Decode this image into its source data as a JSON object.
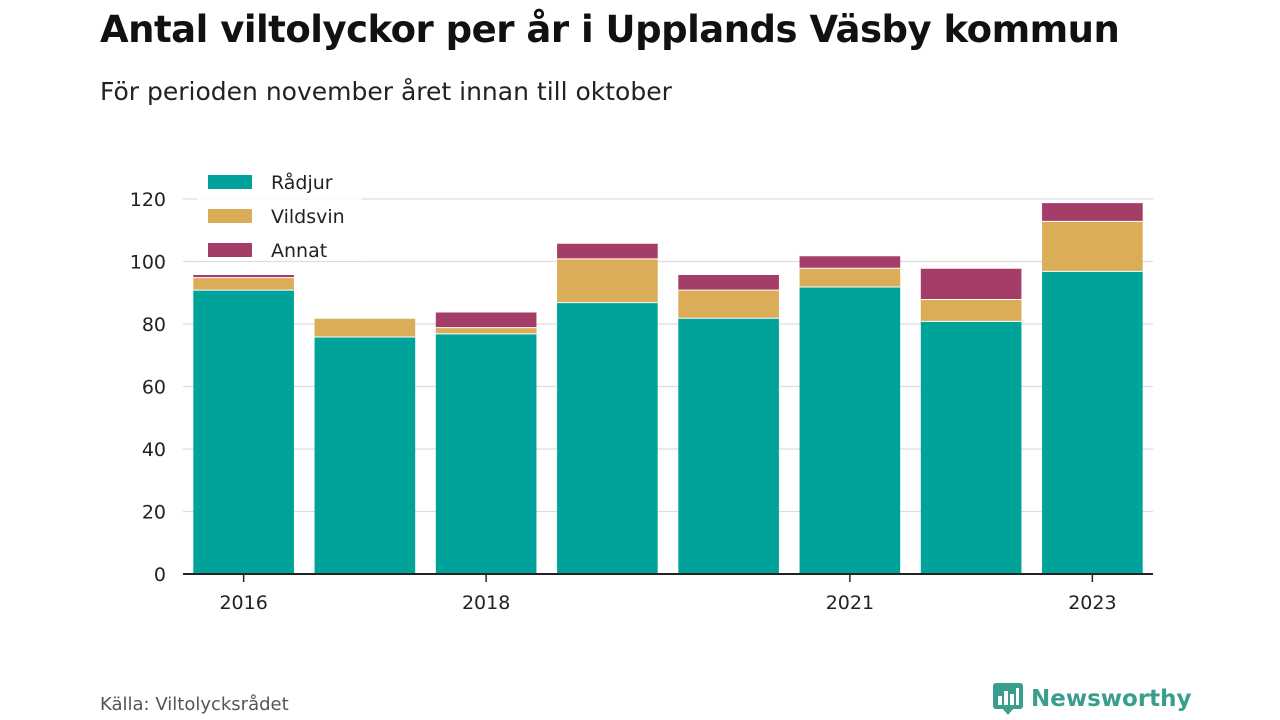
{
  "header": {
    "title": "Antal viltolyckor per år i Upplands Väsby kommun",
    "subtitle": "För perioden november året innan till oktober"
  },
  "footer": {
    "source": "Källa: Viltolycksrådet",
    "brand": "Newsworthy",
    "brand_icon": "bar-chart-speech-bubble-icon"
  },
  "colors": {
    "radjur": "#00a39a",
    "vildsvin": "#dcad58",
    "annat": "#a43d68",
    "grid": "#dddddd",
    "axis": "#222222",
    "brand": "#3a9e8f"
  },
  "chart_data": {
    "type": "bar",
    "stacked": true,
    "categories": [
      "2016",
      "2017",
      "2018",
      "2019",
      "2020",
      "2021",
      "2022",
      "2023"
    ],
    "x_tick_labels": [
      "2016",
      "",
      "2018",
      "",
      "",
      "2021",
      "",
      "2023"
    ],
    "series": [
      {
        "name": "Rådjur",
        "color": "#00a39a",
        "values": [
          91,
          76,
          77,
          87,
          82,
          92,
          81,
          97
        ]
      },
      {
        "name": "Vildsvin",
        "color": "#dcad58",
        "values": [
          4,
          6,
          2,
          14,
          9,
          6,
          7,
          16
        ]
      },
      {
        "name": "Annat",
        "color": "#a43d68",
        "values": [
          1,
          0,
          5,
          5,
          5,
          4,
          10,
          6
        ]
      }
    ],
    "y_ticks": [
      0,
      20,
      40,
      60,
      80,
      100,
      120
    ],
    "ylim": [
      0,
      120
    ],
    "grid": true,
    "legend_position": "top-left",
    "xlabel": "",
    "ylabel": ""
  }
}
